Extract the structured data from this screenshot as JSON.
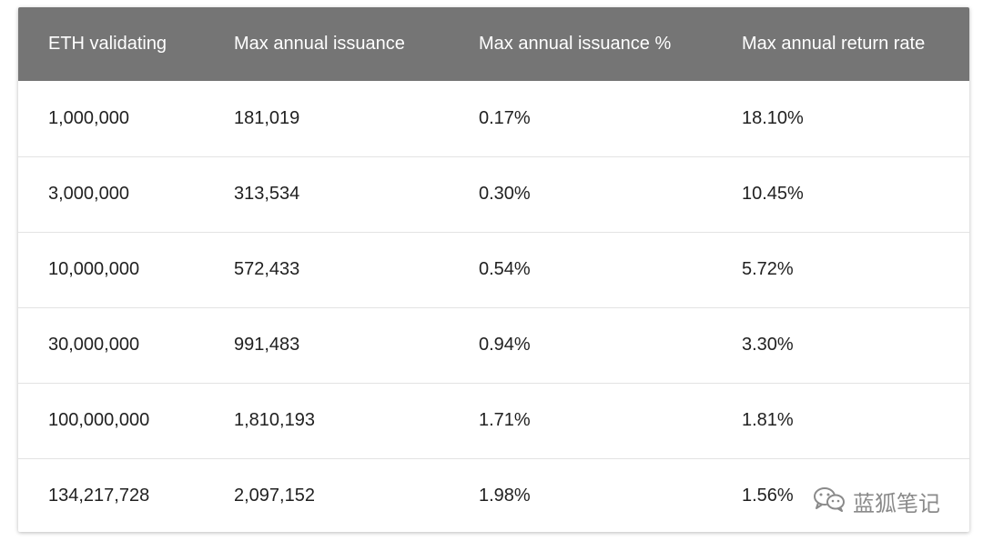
{
  "table": {
    "headers": [
      "ETH validating",
      "Max annual issuance",
      "Max annual issuance %",
      "Max annual return rate"
    ],
    "rows": [
      [
        "1,000,000",
        "181,019",
        "0.17%",
        "18.10%"
      ],
      [
        "3,000,000",
        "313,534",
        "0.30%",
        "10.45%"
      ],
      [
        "10,000,000",
        "572,433",
        "0.54%",
        "5.72%"
      ],
      [
        "30,000,000",
        "991,483",
        "0.94%",
        "3.30%"
      ],
      [
        "100,000,000",
        "1,810,193",
        "1.71%",
        "1.81%"
      ],
      [
        "134,217,728",
        "2,097,152",
        "1.98%",
        "1.56%"
      ]
    ]
  },
  "watermark": {
    "icon": "wechat-icon",
    "text": "蓝狐笔记"
  },
  "colors": {
    "header_bg": "#757575",
    "header_text": "#ffffff",
    "body_text": "#212121",
    "row_divider": "#e3e3e3"
  }
}
